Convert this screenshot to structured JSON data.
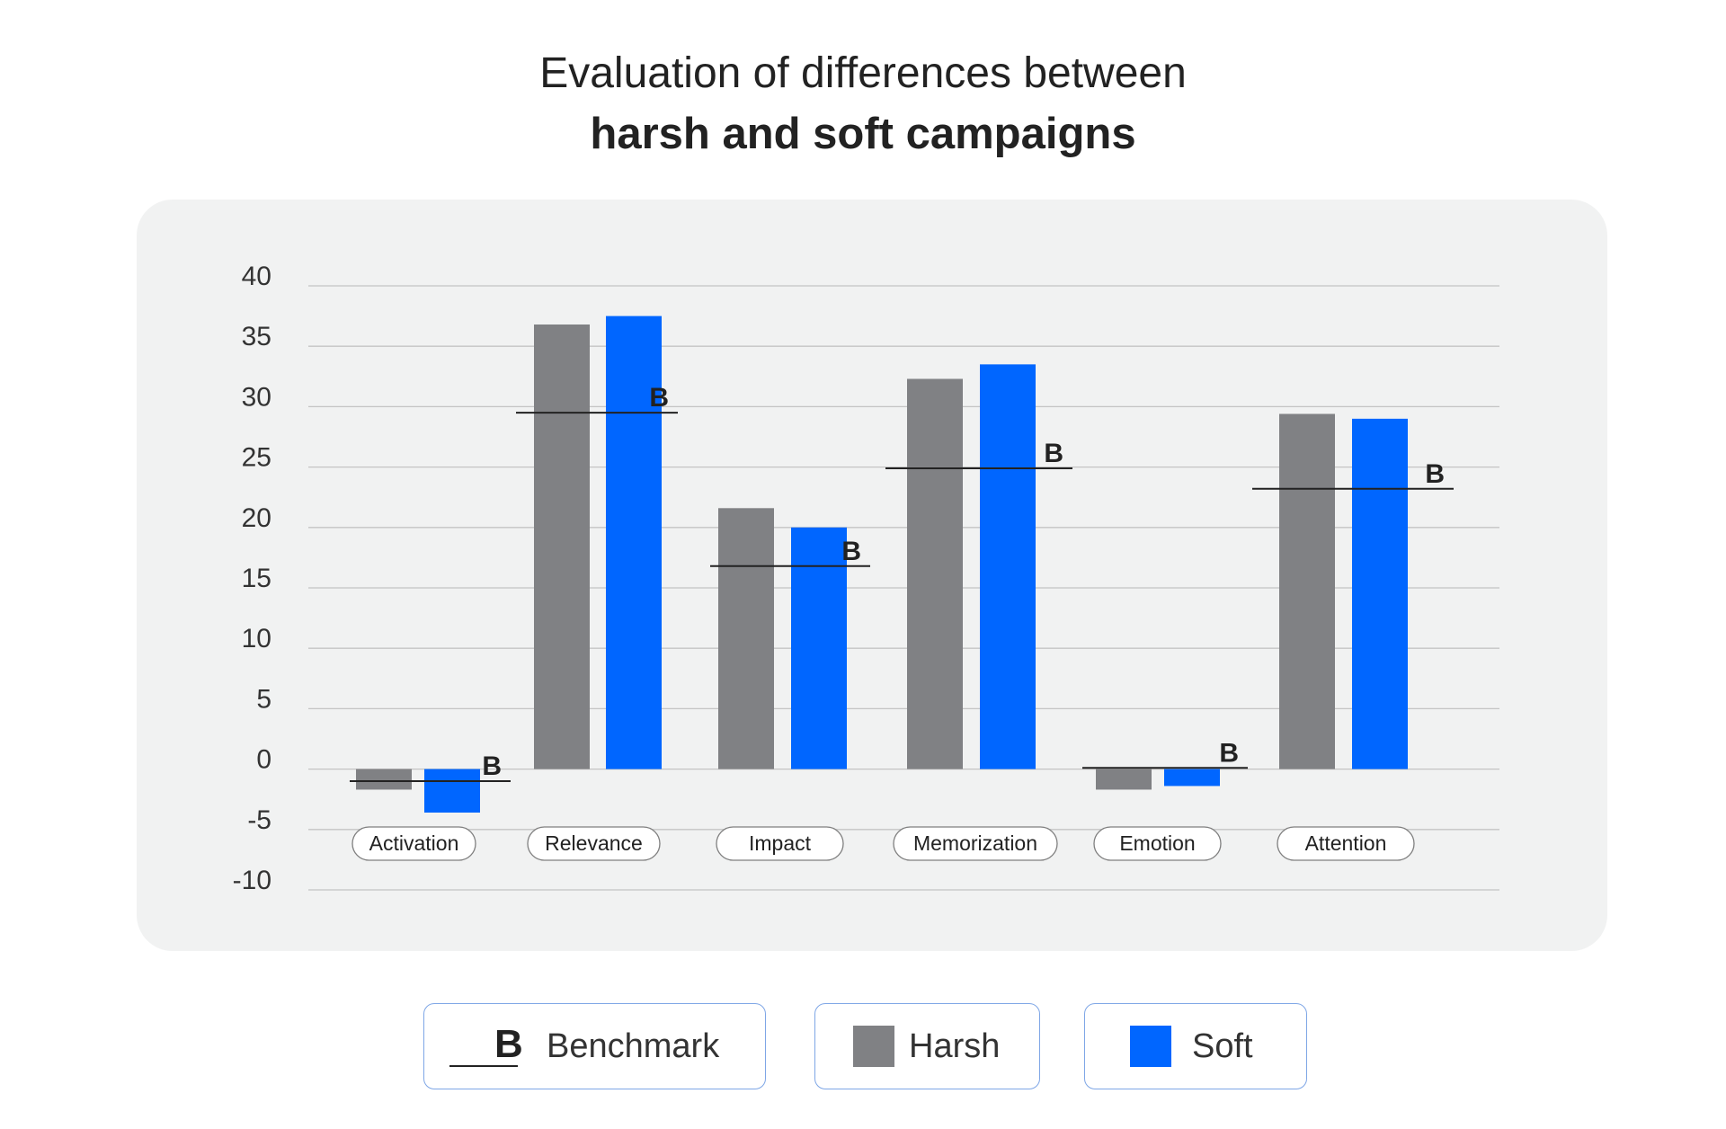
{
  "title": "Evaluation of differences between",
  "subtitle": "harsh and soft campaigns",
  "colors": {
    "harsh": "#808184",
    "soft": "#0066ff",
    "benchmark": "#222222",
    "grid": "#c4c4c4",
    "panel": "#f1f2f2",
    "legend_border": "#7ea6e6"
  },
  "legend": {
    "benchmark_symbol": "B",
    "benchmark_label": "Benchmark",
    "harsh_label": "Harsh",
    "soft_label": "Soft"
  },
  "chart_data": {
    "type": "bar",
    "title": "Evaluation of differences between harsh and soft campaigns",
    "categories": [
      "Activation",
      "Relevance",
      "Impact",
      "Memorization",
      "Emotion",
      "Attention"
    ],
    "series": [
      {
        "name": "Harsh",
        "values": [
          -1.7,
          36.8,
          21.6,
          32.3,
          -1.7,
          29.4
        ]
      },
      {
        "name": "Soft",
        "values": [
          -3.6,
          37.5,
          20.0,
          33.5,
          -1.4,
          29.0
        ]
      },
      {
        "name": "Benchmark",
        "values": [
          -1.0,
          29.5,
          16.8,
          24.9,
          0.1,
          23.2
        ]
      }
    ],
    "benchmark_marker": "B",
    "yticks": [
      "40",
      "35",
      "30",
      "25",
      "20",
      "15",
      "10",
      "5",
      "0",
      "-5",
      "-10"
    ],
    "ylim": [
      -10,
      40
    ],
    "grid": true,
    "legend_position": "bottom"
  }
}
